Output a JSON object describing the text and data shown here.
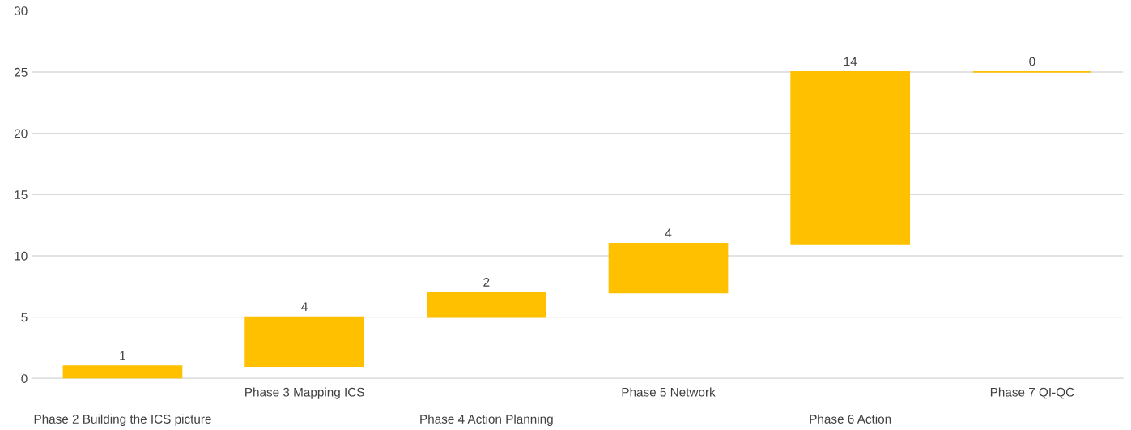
{
  "chart_data": {
    "type": "bar",
    "categories": [
      "Phase 2 Building the ICS picture",
      "Phase 3 Mapping ICS",
      "Phase 4 Action Planning",
      "Phase 5 Network",
      "Phase 6 Action",
      "Phase 7 QI-QC"
    ],
    "values": [
      1,
      4,
      2,
      4,
      14,
      0
    ],
    "base": [
      0,
      1,
      5,
      7,
      11,
      25
    ],
    "color": "#ffc000",
    "ylim": [
      0,
      30
    ],
    "yticks": [
      0,
      5,
      10,
      15,
      20,
      25,
      30
    ],
    "grid": "y",
    "data_labels": true
  }
}
